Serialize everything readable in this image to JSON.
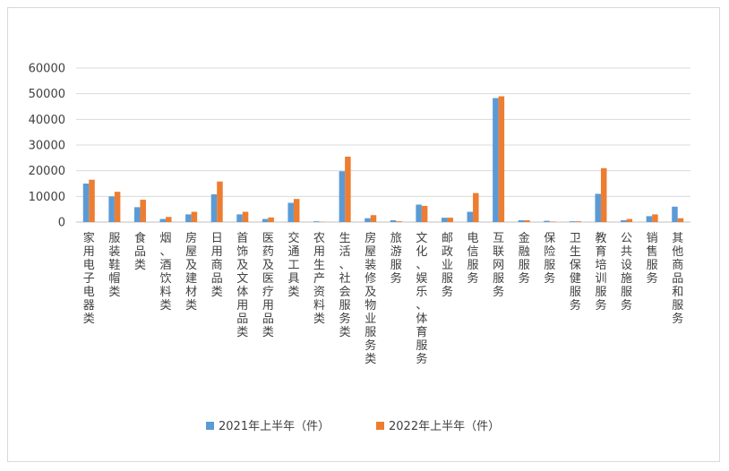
{
  "chart_data": {
    "type": "bar",
    "title": "",
    "xlabel": "",
    "ylabel": "",
    "ylim": [
      0,
      60000
    ],
    "yticks": [
      "0",
      "10000",
      "20000",
      "30000",
      "40000",
      "50000",
      "60000"
    ],
    "grid": true,
    "legend_position": "bottom",
    "categories": [
      "家用电子电器类",
      "服装鞋帽类",
      "食品类",
      "烟、酒饮料类",
      "房屋及建材类",
      "日用商品类",
      "首饰及文体用品类",
      "医药及医疗用品类",
      "交通工具类",
      "农用生产资料类",
      "生活、社会服务类",
      "房屋装修及物业服务类",
      "旅游服务",
      "文化、娱乐、体育服务",
      "邮政业服务",
      "电信服务",
      "互联网服务",
      "金融服务",
      "保险服务",
      "卫生保健服务",
      "教育培训服务",
      "公共设施服务",
      "销售服务",
      "其他商品和服务"
    ],
    "series": [
      {
        "name": "2021年上半年（件）",
        "color": "#5b9bd5",
        "values": [
          15000,
          10000,
          5800,
          1200,
          3000,
          10800,
          3000,
          1200,
          7500,
          300,
          19800,
          1500,
          700,
          6800,
          1700,
          4000,
          48300,
          700,
          500,
          300,
          11000,
          700,
          2300,
          6000
        ]
      },
      {
        "name": "2022年上半年（件）",
        "color": "#ed7d31",
        "values": [
          16500,
          11800,
          8700,
          2000,
          4000,
          15800,
          4000,
          1800,
          9000,
          100,
          25500,
          2700,
          300,
          6300,
          1700,
          11300,
          49000,
          700,
          200,
          300,
          21000,
          1200,
          3000,
          1500
        ]
      }
    ]
  }
}
